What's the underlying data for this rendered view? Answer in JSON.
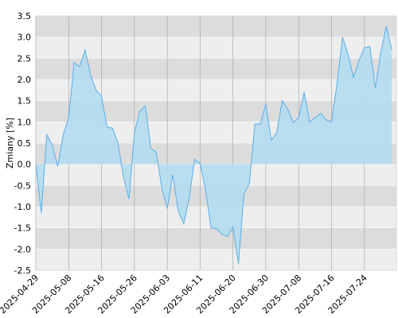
{
  "chart_data": {
    "type": "area",
    "y_label": "Zmiany [%]",
    "color": "#5aaee8",
    "fill": "#b3dcef",
    "categories": [
      "2025-04-29",
      null,
      null,
      null,
      null,
      null,
      "2025-05-08",
      null,
      null,
      null,
      null,
      null,
      "2025-05-16",
      null,
      null,
      null,
      null,
      null,
      "2025-05-26",
      null,
      null,
      null,
      null,
      null,
      "2025-06-03",
      null,
      null,
      null,
      null,
      null,
      "2025-06-11",
      null,
      null,
      null,
      null,
      null,
      "2025-06-20",
      null,
      null,
      null,
      null,
      null,
      "2025-06-30",
      null,
      null,
      null,
      null,
      null,
      "2025-07-08",
      null,
      null,
      null,
      null,
      null,
      "2025-07-16",
      null,
      null,
      null,
      null,
      null,
      "2025-07-24",
      null,
      null,
      null,
      null,
      null
    ],
    "values": [
      0,
      -1.15,
      0.7,
      0.45,
      -0.05,
      0.7,
      1.1,
      2.4,
      2.3,
      2.7,
      2.1,
      1.75,
      1.6,
      0.88,
      0.85,
      0.5,
      -0.3,
      -0.82,
      0.75,
      1.25,
      1.38,
      0.38,
      0.28,
      -0.55,
      -1.05,
      -0.25,
      -1.1,
      -1.4,
      -0.8,
      0.12,
      0.02,
      -0.6,
      -1.5,
      -1.52,
      -1.65,
      -1.7,
      -1.48,
      -2.35,
      -0.7,
      -0.45,
      0.95,
      0.95,
      1.42,
      0.57,
      0.75,
      1.5,
      1.3,
      0.98,
      1.1,
      1.7,
      1.0,
      1.1,
      1.2,
      1.05,
      1.0,
      1.9,
      3.0,
      2.6,
      2.05,
      2.45,
      2.75,
      2.78,
      1.8,
      2.65,
      3.25,
      2.7
    ],
    "ylim": [
      -2.5,
      3.5
    ],
    "yticks": [
      {
        "value": -2.5,
        "label": "-2.5"
      },
      {
        "value": -2,
        "label": "-2.0"
      },
      -1.5,
      {
        "value": -1,
        "label": "-1.0"
      },
      -0.5,
      {
        "value": 0,
        "label": "0.0"
      },
      0.5,
      {
        "value": 1,
        "label": "1.0"
      },
      1.5,
      {
        "value": 2,
        "label": "2.0"
      },
      2.5,
      {
        "value": 3,
        "label": "3.0"
      },
      3.5
    ],
    "grid": true
  }
}
